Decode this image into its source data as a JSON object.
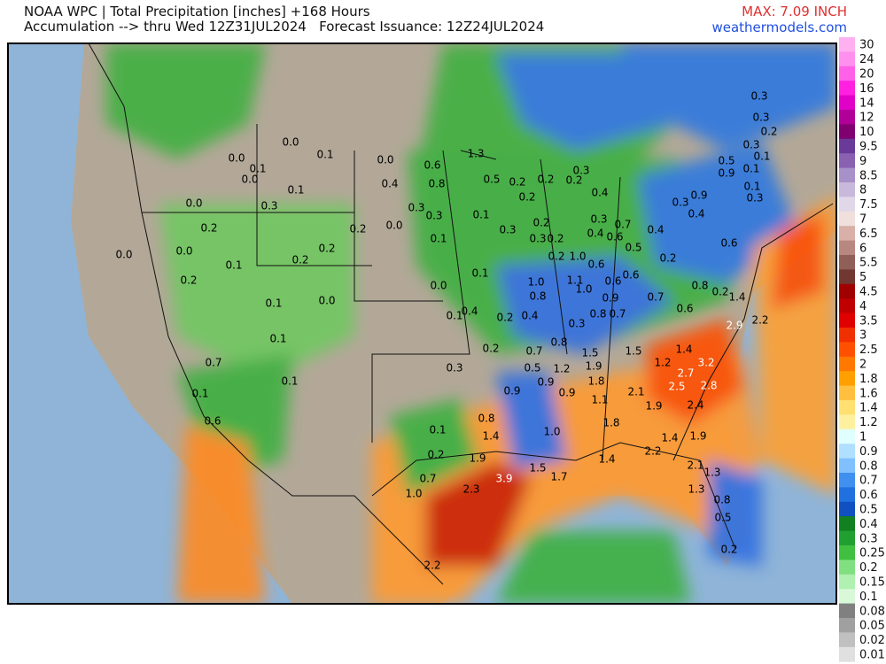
{
  "header": {
    "line1": "NOAA WPC | Total Precipitation [inches] +168 Hours",
    "line2": "Accumulation --> thru Wed 12Z31JUL2024   Forecast Issuance: 12Z24JUL2024",
    "max": "MAX: 7.09 INCH",
    "site": "weathermodels.com"
  },
  "colorbar": {
    "labels": [
      "30",
      "24",
      "20",
      "16",
      "14",
      "12",
      "10",
      "9.5",
      "9",
      "8.5",
      "8",
      "7.5",
      "7",
      "6.5",
      "6",
      "5.5",
      "5",
      "4.5",
      "4",
      "3.5",
      "3",
      "2.5",
      "2",
      "1.8",
      "1.6",
      "1.4",
      "1.2",
      "1",
      "0.9",
      "0.8",
      "0.7",
      "0.6",
      "0.5",
      "0.4",
      "0.3",
      "0.25",
      "0.2",
      "0.15",
      "0.1",
      "0.08",
      "0.05",
      "0.02",
      "0.01"
    ],
    "colors": [
      "#ffb0f0",
      "#ff90ee",
      "#ff60e8",
      "#ff20e0",
      "#e000c8",
      "#b00098",
      "#800070",
      "#6a3a98",
      "#8a60b0",
      "#a890c8",
      "#c8b8dc",
      "#e0d8e8",
      "#f0e0dc",
      "#d8b0a8",
      "#b88880",
      "#906058",
      "#703830",
      "#a00000",
      "#c00000",
      "#e00000",
      "#f03000",
      "#ff5000",
      "#ff7800",
      "#ffa000",
      "#ffc040",
      "#ffe070",
      "#fff0a0",
      "#e0ffff",
      "#b0e0ff",
      "#80c0ff",
      "#4090f0",
      "#2070e0",
      "#1050c0",
      "#108020",
      "#20a030",
      "#40c040",
      "#80e080",
      "#b0f0b0",
      "#d8f8d8",
      "#808080",
      "#a0a0a0",
      "#c0c0c0",
      "#e0e0e0"
    ]
  },
  "map": {
    "labels": [
      "0.0",
      "0.1",
      "0.0",
      "0.1",
      "0.0",
      "0.1",
      "0.0",
      "0.6",
      "1.3",
      "0.4",
      "0.8",
      "0.0",
      "0.3",
      "0.3",
      "0.3",
      "0.2",
      "0.2",
      "0.0",
      "0.2",
      "0.1",
      "0.0",
      "0.0",
      "0.2",
      "0.1",
      "0.2",
      "0.1",
      "0.0",
      "0.0",
      "0.1",
      "0.4",
      "0.1",
      "0.2",
      "0.4",
      "0.1",
      "0.7",
      "0.1",
      "0.1",
      "0.2",
      "0.7",
      "0.3",
      "0.5",
      "0.9",
      "1.2",
      "1.9",
      "1.5",
      "1.5",
      "1.4",
      "1.2",
      "3.2",
      "2.7",
      "2.5",
      "2.8",
      "0.9",
      "0.9",
      "1.8",
      "2.1",
      "1.1",
      "1.9",
      "2.4",
      "0.6",
      "0.8",
      "1.4",
      "1.0",
      "1.8",
      "1.4",
      "1.9",
      "0.1",
      "0.2",
      "1.9",
      "2.2",
      "1.5",
      "1.4",
      "2.1",
      "1.3",
      "1.7",
      "0.7",
      "3.9",
      "2.3",
      "1.0",
      "1.3",
      "0.8",
      "0.5",
      "0.2",
      "2.2",
      "2.9",
      "2.2",
      "0.6",
      "0.7",
      "0.9",
      "0.7",
      "0.8",
      "0.3",
      "0.8",
      "1.0",
      "0.8",
      "1.1",
      "1.0",
      "1.0",
      "0.6",
      "0.6",
      "0.6",
      "0.2",
      "0.8",
      "0.2",
      "1.4",
      "0.6",
      "0.5",
      "0.6",
      "0.7",
      "0.4",
      "0.3",
      "0.4",
      "0.3",
      "0.9",
      "0.4",
      "0.5",
      "0.9",
      "0.3",
      "0.1",
      "0.1",
      "0.1",
      "0.3",
      "0.3",
      "0.3",
      "0.2",
      "0.2",
      "0.2",
      "0.3",
      "0.4",
      "0.5",
      "0.2",
      "0.2",
      "0.1",
      "0.3",
      "0.2",
      "0.3",
      "0.2",
      "0.2"
    ]
  }
}
